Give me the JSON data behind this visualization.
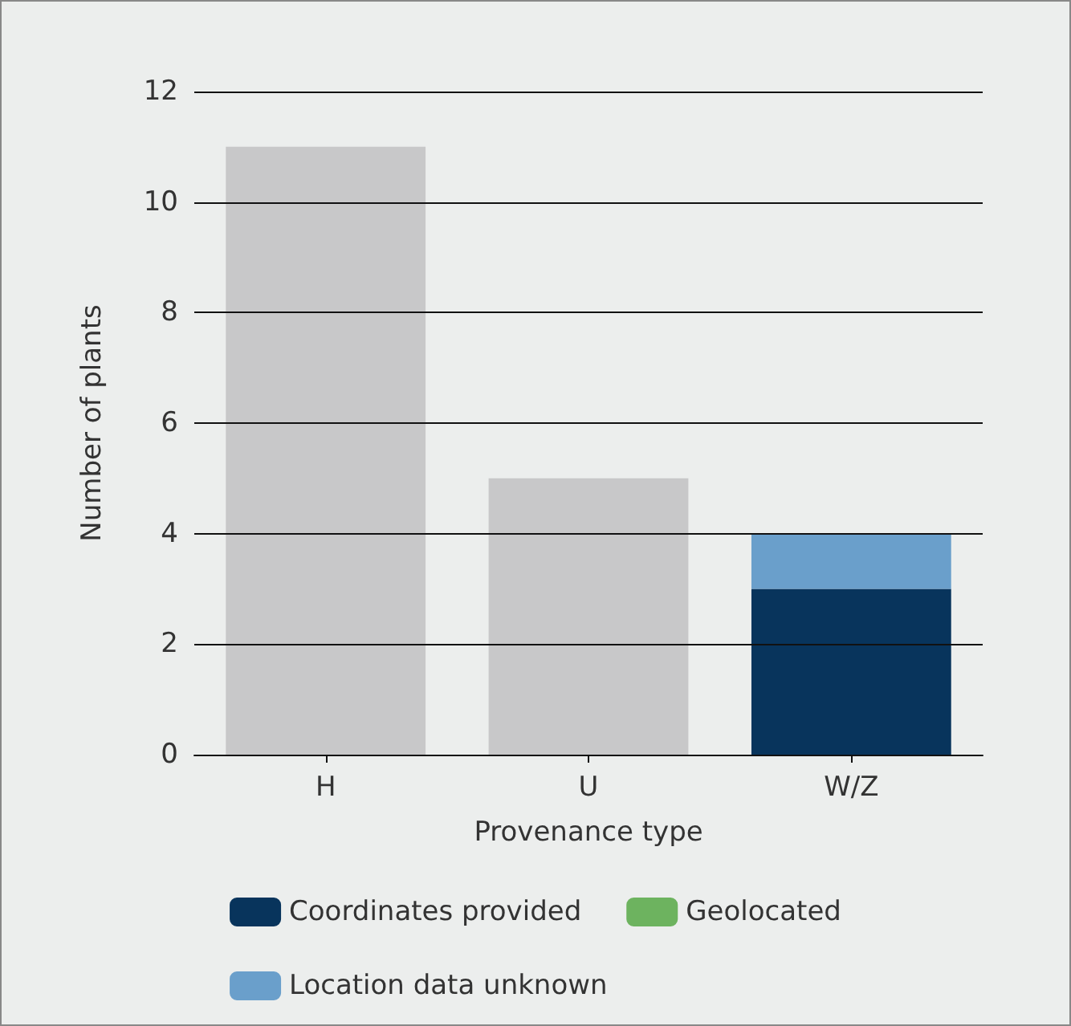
{
  "chart_data": {
    "type": "bar",
    "stacked": true,
    "xlabel": "Provenance type",
    "ylabel": "Number of plants",
    "categories": [
      "H",
      "U",
      "W/Z"
    ],
    "series": [
      {
        "color": "#c8c8c9",
        "values": [
          11,
          5,
          null
        ]
      },
      {
        "name": "Coordinates provided",
        "color": "#08345c",
        "values": [
          null,
          null,
          3
        ]
      },
      {
        "name": "Geolocated",
        "color": "#6db35f",
        "values": [
          null,
          null,
          0
        ]
      },
      {
        "name": "Location data unknown",
        "color": "#6a9fcb",
        "values": [
          null,
          null,
          1
        ]
      }
    ],
    "ylim": [
      0,
      12
    ],
    "yticks": [
      0,
      2,
      4,
      6,
      8,
      10,
      12
    ],
    "grid": "y",
    "legend": "bottom"
  }
}
